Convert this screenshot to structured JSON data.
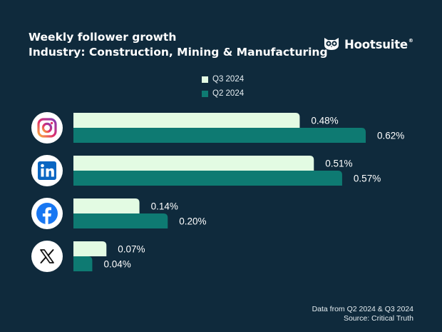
{
  "header": {
    "title": "Weekly follower growth",
    "subtitle": "Industry: Construction, Mining & Manufacturing"
  },
  "brand": {
    "name": "Hootsuite",
    "reg": "®"
  },
  "footer": {
    "line1": "Data from Q2 2024 & Q3 2024",
    "line2": "Source: Critical Truth"
  },
  "colors": {
    "background": "#0f2a3c",
    "q3": "#e3fbe3",
    "q2": "#0e7a72",
    "icon_bg": "#ffffff"
  },
  "chart_data": {
    "type": "bar",
    "orientation": "horizontal",
    "title": "Weekly follower growth",
    "subtitle": "Industry: Construction, Mining & Manufacturing",
    "categories": [
      "Instagram",
      "LinkedIn",
      "Facebook",
      "X"
    ],
    "series": [
      {
        "name": "Q3 2024",
        "values": [
          0.48,
          0.51,
          0.14,
          0.07
        ],
        "labels": [
          "0.48%",
          "0.51%",
          "0.14%",
          "0.07%"
        ]
      },
      {
        "name": "Q2 2024",
        "values": [
          0.62,
          0.57,
          0.2,
          0.04
        ],
        "labels": [
          "0.62%",
          "0.57%",
          "0.20%",
          "0.04%"
        ]
      }
    ],
    "xlim": [
      0,
      0.62
    ],
    "legend": "top-center",
    "grid": false,
    "unit": "%"
  }
}
